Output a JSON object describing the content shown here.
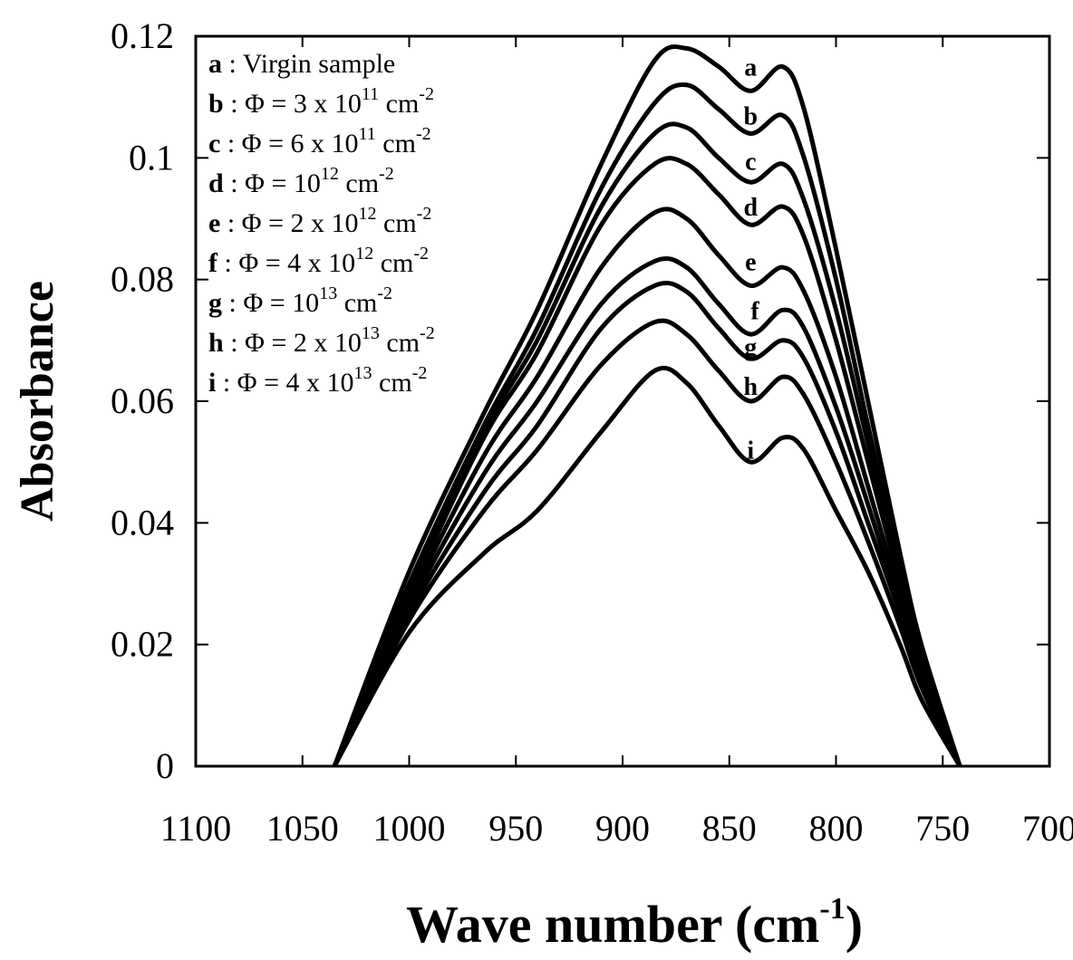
{
  "chart_data": {
    "type": "line",
    "xlabel": "Wave number (cm",
    "xlabel_sup": "-1",
    "xlabel_close": ")",
    "ylabel": "Absorbance",
    "xlim": [
      1100,
      700
    ],
    "ylim": [
      0,
      0.12
    ],
    "x_reversed": true,
    "grid": false,
    "legend_position": "top-left",
    "x_ticks": [
      1100,
      1050,
      1000,
      950,
      900,
      850,
      800,
      750,
      700
    ],
    "x_tick_labels": [
      "1100",
      "1050",
      "1000",
      "950",
      "900",
      "850",
      "800",
      "750",
      "700"
    ],
    "y_ticks": [
      0,
      0.02,
      0.04,
      0.06,
      0.08,
      0.1,
      0.12
    ],
    "y_tick_labels": [
      "0",
      "0.02",
      "0.04",
      "0.06",
      "0.08",
      "0.1",
      "0.12"
    ],
    "series": [
      {
        "name": "a",
        "label_at": [
          840,
          0.115
        ],
        "x": [
          1035,
          1000,
          965,
          940,
          910,
          885,
          870,
          855,
          840,
          825,
          815,
          800,
          785,
          770,
          760,
          742
        ],
        "y": [
          0,
          0.032,
          0.058,
          0.075,
          0.099,
          0.116,
          0.118,
          0.115,
          0.111,
          0.115,
          0.108,
          0.085,
          0.06,
          0.035,
          0.02,
          0
        ]
      },
      {
        "name": "b",
        "label_at": [
          840,
          0.107
        ],
        "x": [
          1035,
          1000,
          965,
          940,
          910,
          885,
          870,
          855,
          840,
          825,
          815,
          800,
          785,
          770,
          760,
          742
        ],
        "y": [
          0,
          0.03,
          0.056,
          0.072,
          0.095,
          0.109,
          0.112,
          0.108,
          0.104,
          0.107,
          0.1,
          0.08,
          0.056,
          0.033,
          0.019,
          0
        ]
      },
      {
        "name": "c",
        "label_at": [
          840,
          0.0995
        ],
        "x": [
          1035,
          1000,
          965,
          940,
          910,
          885,
          870,
          855,
          840,
          825,
          815,
          800,
          785,
          770,
          760,
          742
        ],
        "y": [
          0,
          0.029,
          0.055,
          0.07,
          0.092,
          0.104,
          0.105,
          0.1,
          0.096,
          0.099,
          0.093,
          0.075,
          0.053,
          0.031,
          0.018,
          0
        ]
      },
      {
        "name": "d",
        "label_at": [
          840,
          0.092
        ],
        "x": [
          1035,
          1000,
          965,
          940,
          910,
          885,
          870,
          855,
          840,
          825,
          815,
          800,
          785,
          770,
          760,
          742
        ],
        "y": [
          0,
          0.028,
          0.054,
          0.068,
          0.089,
          0.099,
          0.099,
          0.094,
          0.089,
          0.092,
          0.087,
          0.07,
          0.05,
          0.03,
          0.017,
          0
        ]
      },
      {
        "name": "e",
        "label_at": [
          840,
          0.083
        ],
        "x": [
          1035,
          1000,
          965,
          940,
          910,
          885,
          870,
          855,
          840,
          825,
          815,
          800,
          785,
          770,
          760,
          742
        ],
        "y": [
          0,
          0.027,
          0.051,
          0.064,
          0.082,
          0.091,
          0.09,
          0.084,
          0.079,
          0.082,
          0.078,
          0.064,
          0.046,
          0.028,
          0.016,
          0
        ]
      },
      {
        "name": "f",
        "label_at": [
          838,
          0.075
        ],
        "x": [
          1035,
          1000,
          965,
          940,
          910,
          885,
          870,
          855,
          840,
          825,
          815,
          800,
          785,
          770,
          760,
          742
        ],
        "y": [
          0,
          0.026,
          0.048,
          0.06,
          0.076,
          0.083,
          0.082,
          0.076,
          0.071,
          0.075,
          0.072,
          0.059,
          0.043,
          0.026,
          0.015,
          0
        ]
      },
      {
        "name": "g",
        "label_at": [
          840,
          0.069
        ],
        "x": [
          1035,
          1000,
          965,
          940,
          910,
          885,
          870,
          855,
          840,
          825,
          815,
          800,
          785,
          770,
          760,
          742
        ],
        "y": [
          0,
          0.025,
          0.045,
          0.056,
          0.072,
          0.079,
          0.078,
          0.072,
          0.067,
          0.07,
          0.067,
          0.055,
          0.04,
          0.025,
          0.014,
          0
        ]
      },
      {
        "name": "h",
        "label_at": [
          840,
          0.0625
        ],
        "x": [
          1035,
          1000,
          965,
          940,
          910,
          885,
          870,
          855,
          840,
          825,
          815,
          800,
          785,
          770,
          760,
          742
        ],
        "y": [
          0,
          0.024,
          0.042,
          0.052,
          0.066,
          0.073,
          0.071,
          0.065,
          0.06,
          0.064,
          0.061,
          0.05,
          0.037,
          0.023,
          0.013,
          0
        ]
      },
      {
        "name": "i",
        "label_at": [
          840,
          0.052
        ],
        "x": [
          1035,
          1000,
          965,
          940,
          910,
          885,
          870,
          855,
          840,
          825,
          815,
          800,
          785,
          770,
          760,
          742
        ],
        "y": [
          0,
          0.022,
          0.035,
          0.042,
          0.055,
          0.065,
          0.063,
          0.056,
          0.05,
          0.054,
          0.052,
          0.042,
          0.032,
          0.02,
          0.011,
          0
        ]
      }
    ],
    "legend": [
      {
        "key": "a",
        "text": " : Virgin sample",
        "sup": "",
        "tail": ""
      },
      {
        "key": "b",
        "text": " : Φ = 3 x 10",
        "sup": "11",
        "tail": " cm",
        "sup2": "-2"
      },
      {
        "key": "c",
        "text": " : Φ = 6 x 10",
        "sup": "11",
        "tail": " cm",
        "sup2": "-2"
      },
      {
        "key": "d",
        "text": " : Φ = 10",
        "sup": "12",
        "tail": " cm",
        "sup2": "-2"
      },
      {
        "key": "e",
        "text": " : Φ = 2 x 10",
        "sup": "12",
        "tail": " cm",
        "sup2": "-2"
      },
      {
        "key": "f",
        "text": " :  Φ = 4 x 10",
        "sup": "12",
        "tail": " cm",
        "sup2": "-2"
      },
      {
        "key": "g",
        "text": " : Φ = 10",
        "sup": "13",
        "tail": " cm",
        "sup2": "-2"
      },
      {
        "key": "h",
        "text": " : Φ = 2 x 10",
        "sup": "13",
        "tail": " cm",
        "sup2": "-2"
      },
      {
        "key": "i",
        "text": "  : Φ = 4 x 10",
        "sup": "13",
        "tail": " cm",
        "sup2": "-2"
      }
    ]
  }
}
